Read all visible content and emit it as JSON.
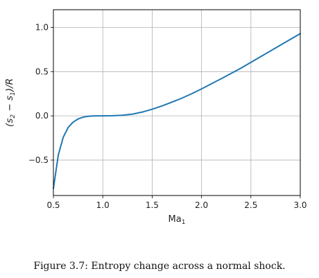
{
  "chart_data": {
    "type": "line",
    "xlabel_base": "Ma",
    "xlabel_sub": "1",
    "ylabel_parts": {
      "open": "(s",
      "sub2": "2",
      "minus": " − s",
      "sub1": "1",
      "close": ")/R"
    },
    "xlim": [
      0.5,
      3.0
    ],
    "ylim": [
      -0.9,
      1.2
    ],
    "xticks": [
      0.5,
      1.0,
      1.5,
      2.0,
      2.5,
      3.0
    ],
    "xtick_labels": [
      "0.5",
      "1.0",
      "1.5",
      "2.0",
      "2.5",
      "3.0"
    ],
    "yticks": [
      -0.5,
      0.0,
      0.5,
      1.0
    ],
    "ytick_labels": [
      "−0.5",
      "0.0",
      "0.5",
      "1.0"
    ],
    "grid": true,
    "series": [
      {
        "color": "#1f77b4",
        "x": [
          0.5,
          0.55,
          0.6,
          0.65,
          0.7,
          0.75,
          0.8,
          0.85,
          0.9,
          0.95,
          1.0,
          1.1,
          1.2,
          1.3,
          1.4,
          1.5,
          1.6,
          1.7,
          1.8,
          1.9,
          2.0,
          2.2,
          2.4,
          2.6,
          2.8,
          3.0
        ],
        "y": [
          -0.82,
          -0.44,
          -0.24,
          -0.13,
          -0.07,
          -0.035,
          -0.015,
          -0.005,
          -0.001,
          0.0,
          0.0,
          0.002,
          0.007,
          0.02,
          0.043,
          0.075,
          0.112,
          0.155,
          0.2,
          0.25,
          0.305,
          0.42,
          0.54,
          0.67,
          0.8,
          0.93
        ]
      }
    ]
  },
  "caption": "Figure 3.7: Entropy change across a normal shock."
}
